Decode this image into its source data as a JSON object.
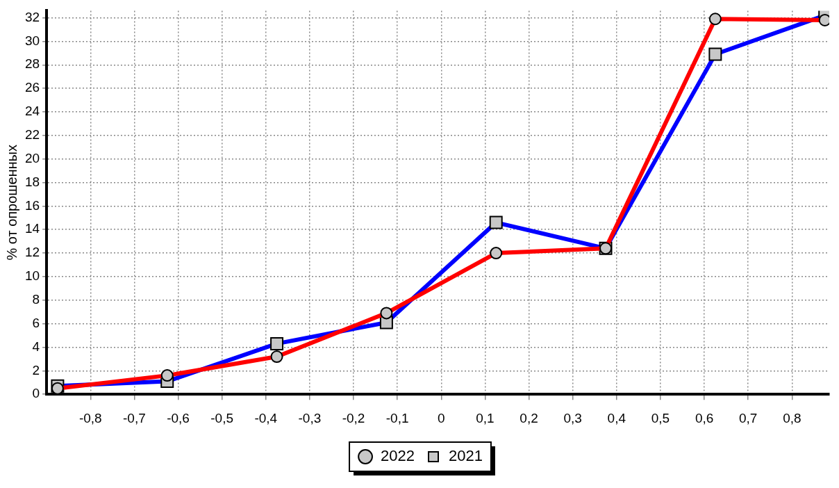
{
  "chart_data": {
    "type": "line",
    "ylabel": "% от опрошенных",
    "x": [
      -0.875,
      -0.625,
      -0.375,
      -0.125,
      0.125,
      0.375,
      0.625,
      0.875
    ],
    "series": [
      {
        "name": "2021",
        "color": "#0000ff",
        "marker": "square",
        "values": [
          0.7,
          1.1,
          4.3,
          6.1,
          14.6,
          12.4,
          28.9,
          32.2
        ]
      },
      {
        "name": "2022",
        "color": "#ff0000",
        "marker": "circle",
        "values": [
          0.5,
          1.6,
          3.2,
          6.9,
          12.0,
          12.4,
          31.9,
          31.8
        ]
      }
    ],
    "xlim": [
      -0.9,
      0.885
    ],
    "xticks": [
      {
        "value": -0.8,
        "label": "-0,8"
      },
      {
        "value": -0.7,
        "label": "-0,7"
      },
      {
        "value": -0.6,
        "label": "-0,6"
      },
      {
        "value": -0.5,
        "label": "-0,5"
      },
      {
        "value": -0.4,
        "label": "-0,4"
      },
      {
        "value": -0.3,
        "label": "-0,3"
      },
      {
        "value": -0.2,
        "label": "-0,2"
      },
      {
        "value": -0.1,
        "label": "-0,1"
      },
      {
        "value": 0,
        "label": "0"
      },
      {
        "value": 0.1,
        "label": "0,1"
      },
      {
        "value": 0.2,
        "label": "0,2"
      },
      {
        "value": 0.3,
        "label": "0,3"
      },
      {
        "value": 0.4,
        "label": "0,4"
      },
      {
        "value": 0.5,
        "label": "0,5"
      },
      {
        "value": 0.6,
        "label": "0,6"
      },
      {
        "value": 0.7,
        "label": "0,7"
      },
      {
        "value": 0.8,
        "label": "0,8"
      }
    ],
    "ylim": [
      0,
      32.6
    ],
    "yticks": [
      0,
      2,
      4,
      6,
      8,
      10,
      12,
      14,
      16,
      18,
      20,
      22,
      24,
      26,
      28,
      30,
      32
    ],
    "grid": true,
    "legend": "bottom",
    "line_style": "solid"
  }
}
